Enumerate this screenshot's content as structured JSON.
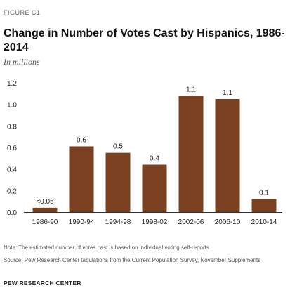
{
  "figure_label": "FIGURE C1",
  "notes": {
    "note": "Note: The estimated number of votes cast is based on individual voting self-reports.",
    "source": "Source: Pew Research Center tabulations from the Current Population Survey, November Supplements",
    "credit": "PEW RESEARCH CENTER"
  },
  "colors": {
    "bar": "#7b4020",
    "axis": "#333333",
    "text": "#222222"
  },
  "chart_data": {
    "type": "bar",
    "title": "Change in Number of Votes Cast by Hispanics, 1986-2014",
    "subtitle": "In millions",
    "xlabel": "",
    "ylabel": "",
    "ylim": [
      0,
      1.2
    ],
    "yticks": [
      "0.0",
      "0.2",
      "0.4",
      "0.6",
      "0.8",
      "1.0",
      "1.2"
    ],
    "grid": false,
    "categories": [
      "1986-90",
      "1990-94",
      "1994-98",
      "1998-02",
      "2002-06",
      "2006-10",
      "2010-14"
    ],
    "values": [
      0.04,
      0.61,
      0.55,
      0.44,
      1.08,
      1.05,
      0.12
    ],
    "data_labels": [
      "<0.05",
      "0.6",
      "0.5",
      "0.4",
      "1.1",
      "1.1",
      "0.1"
    ]
  }
}
